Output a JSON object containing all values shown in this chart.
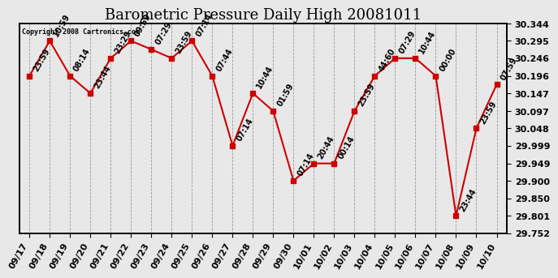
{
  "title": "Barometric Pressure Daily High 20081011",
  "copyright": "Copyright 2008 Cartronics.com",
  "x_labels": [
    "09/17",
    "09/18",
    "09/19",
    "09/20",
    "09/21",
    "09/22",
    "09/23",
    "09/24",
    "09/25",
    "09/26",
    "09/27",
    "09/28",
    "09/29",
    "09/30",
    "10/01",
    "10/02",
    "10/03",
    "10/04",
    "10/05",
    "10/06",
    "10/07",
    "10/08",
    "10/09",
    "10/10"
  ],
  "y_values": [
    30.196,
    30.295,
    30.196,
    30.147,
    30.246,
    30.295,
    30.271,
    30.246,
    30.295,
    30.196,
    29.999,
    30.147,
    30.097,
    29.9,
    29.949,
    29.949,
    30.097,
    30.196,
    30.246,
    30.246,
    30.196,
    29.801,
    30.048,
    30.172
  ],
  "time_labels": [
    "23:59",
    "10:59",
    "08:14",
    "23:44",
    "23:29",
    "09:59",
    "07:29",
    "23:59",
    "07:14",
    "07:44",
    "07:14",
    "10:44",
    "01:59",
    "07:14",
    "20:44",
    "00:14",
    "23:59",
    "44:60",
    "07:29",
    "10:44",
    "00:00",
    "23:44",
    "23:59",
    "07:59"
  ],
  "y_ticks": [
    29.752,
    29.801,
    29.85,
    29.9,
    29.949,
    29.999,
    30.048,
    30.097,
    30.147,
    30.196,
    30.246,
    30.295,
    30.344
  ],
  "y_min": 29.752,
  "y_max": 30.344,
  "line_color": "#cc0000",
  "marker_color": "#cc0000",
  "bg_color": "#e8e8e8",
  "plot_bg_color": "#e8e8e8",
  "grid_color": "#999999",
  "title_fontsize": 13,
  "tick_fontsize": 8,
  "annotation_fontsize": 7,
  "annotation_rotation": 60
}
